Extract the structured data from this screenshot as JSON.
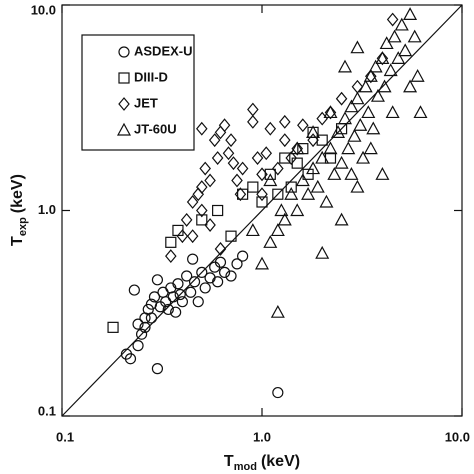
{
  "chart_data": {
    "type": "scatter",
    "xlabel": {
      "symbol": "T",
      "subscript": "mod",
      "unit": "(keV)"
    },
    "ylabel": {
      "symbol": "T",
      "subscript": "exp",
      "unit": "(keV)"
    },
    "log_x": true,
    "log_y": true,
    "xlim": [
      0.1,
      10
    ],
    "ylim": [
      0.1,
      10
    ],
    "xticks": [
      0.1,
      {
        "value": 1,
        "label": "1.0"
      },
      {
        "value": 10,
        "label": "10.0"
      }
    ],
    "yticks": [
      0.1,
      {
        "value": 1,
        "label": "1.0"
      },
      {
        "value": 10,
        "label": "10.0"
      }
    ],
    "identity_line": true,
    "legend": "upper left",
    "series": [
      {
        "name": "ASDEX-U",
        "marker": "circle",
        "color": "#111111",
        "x": [
          0.23,
          0.21,
          0.22,
          0.24,
          0.25,
          0.26,
          0.27,
          0.28,
          0.29,
          0.3,
          0.3,
          0.32,
          0.33,
          0.35,
          0.36,
          0.38,
          0.4,
          0.42,
          0.44,
          0.46,
          0.5,
          0.52,
          0.55,
          0.58,
          0.6,
          0.62,
          0.65,
          0.7,
          0.75,
          0.28,
          0.31,
          0.34,
          0.37,
          0.26,
          0.24,
          1.2,
          0.45,
          0.48,
          0.8,
          0.39
        ],
        "values": [
          0.41,
          0.2,
          0.19,
          0.22,
          0.25,
          0.3,
          0.33,
          0.35,
          0.38,
          0.46,
          0.17,
          0.4,
          0.36,
          0.42,
          0.38,
          0.44,
          0.36,
          0.48,
          0.4,
          0.45,
          0.5,
          0.42,
          0.47,
          0.53,
          0.45,
          0.56,
          0.5,
          0.48,
          0.55,
          0.3,
          0.34,
          0.33,
          0.32,
          0.27,
          0.28,
          0.13,
          0.58,
          0.36,
          0.6,
          0.39
        ]
      },
      {
        "name": "DIII-D",
        "marker": "square",
        "color": "#111111",
        "x": [
          0.18,
          0.35,
          0.38,
          0.5,
          0.6,
          0.8,
          0.9,
          1.1,
          1.3,
          1.4,
          1.5,
          1.6,
          1.7,
          2.0,
          2.2,
          2.5,
          1.2,
          1.0,
          0.7,
          1.8
        ],
        "values": [
          0.27,
          0.7,
          0.8,
          0.9,
          1.0,
          1.2,
          1.3,
          1.5,
          1.8,
          1.3,
          1.7,
          2.0,
          1.5,
          2.2,
          1.8,
          2.5,
          1.2,
          1.1,
          0.75,
          2.4
        ]
      },
      {
        "name": "JET",
        "marker": "diamond",
        "color": "#111111",
        "x": [
          0.35,
          0.4,
          0.42,
          0.45,
          0.48,
          0.5,
          0.5,
          0.52,
          0.55,
          0.58,
          0.6,
          0.62,
          0.65,
          0.68,
          0.7,
          0.72,
          0.75,
          0.78,
          0.8,
          0.9,
          0.9,
          0.95,
          1.0,
          1.0,
          1.05,
          1.1,
          1.2,
          1.3,
          1.4,
          1.5,
          1.6,
          1.8,
          2.0,
          2.2,
          2.5,
          3.0,
          3.5,
          4.0,
          4.5,
          0.55,
          0.62,
          0.45,
          1.3,
          0.5
        ],
        "values": [
          0.6,
          0.75,
          0.9,
          1.1,
          1.2,
          1.0,
          1.3,
          1.6,
          1.4,
          2.2,
          1.8,
          2.4,
          2.6,
          1.9,
          2.2,
          1.7,
          1.4,
          1.2,
          1.6,
          3.1,
          2.7,
          1.8,
          1.5,
          1.2,
          1.9,
          2.5,
          1.6,
          2.2,
          1.8,
          2.0,
          2.6,
          2.2,
          2.8,
          3.0,
          3.5,
          4.0,
          4.5,
          5.5,
          8.5,
          0.85,
          0.65,
          0.75,
          2.7,
          2.5
        ]
      },
      {
        "name": "JT-60U",
        "marker": "triangle",
        "color": "#111111",
        "x": [
          1.0,
          1.1,
          1.2,
          1.25,
          1.3,
          1.4,
          1.5,
          1.6,
          1.7,
          1.8,
          1.9,
          2.0,
          2.1,
          2.2,
          2.3,
          2.4,
          2.5,
          2.6,
          2.7,
          2.8,
          2.9,
          3.0,
          3.1,
          3.2,
          3.3,
          3.4,
          3.5,
          3.6,
          3.7,
          3.8,
          4.0,
          4.1,
          4.2,
          4.4,
          4.6,
          4.8,
          5.0,
          5.2,
          5.5,
          5.8,
          6.0,
          6.2,
          1.2,
          2.0,
          2.5,
          3.0,
          4.0,
          1.8,
          2.2,
          1.5,
          3.0,
          2.6,
          4.5,
          5.5,
          3.5,
          1.1,
          0.9,
          2.8
        ],
        "values": [
          0.55,
          0.7,
          0.8,
          1.0,
          0.9,
          1.2,
          1.0,
          1.4,
          1.2,
          1.6,
          1.3,
          1.8,
          1.1,
          2.0,
          1.5,
          2.4,
          1.7,
          2.8,
          2.0,
          3.2,
          2.3,
          3.5,
          2.6,
          1.8,
          4.0,
          3.0,
          4.5,
          2.5,
          5.0,
          3.6,
          5.5,
          4.0,
          6.5,
          4.8,
          7.0,
          5.5,
          8.0,
          6.0,
          9.0,
          7.0,
          4.5,
          3.0,
          0.32,
          0.62,
          0.9,
          1.3,
          1.5,
          2.4,
          3.0,
          2.0,
          6.2,
          5.0,
          3.0,
          4.0,
          2.0,
          1.4,
          0.8,
          1.5
        ]
      }
    ]
  }
}
